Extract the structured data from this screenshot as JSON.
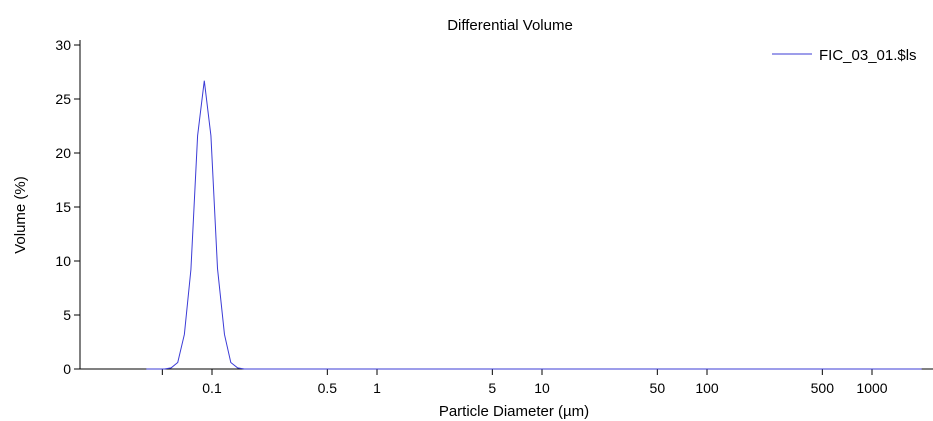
{
  "chart_data": {
    "type": "line",
    "title": "Differential Volume",
    "xlabel": "Particle Diameter (µm)",
    "ylabel": "Volume (%)",
    "x_scale": "log",
    "xlim": [
      0.024,
      2000
    ],
    "ylim": [
      0,
      30
    ],
    "x_ticks": [
      0.1,
      0.5,
      1,
      5,
      10,
      50,
      100,
      500,
      1000
    ],
    "x_tick_labels": [
      "0.1",
      "0.5",
      "1",
      "5",
      "10",
      "50",
      "100",
      "500",
      "1000"
    ],
    "x_minor_ticks": [
      0.05
    ],
    "y_ticks": [
      0,
      5,
      10,
      15,
      20,
      25,
      30
    ],
    "y_tick_labels": [
      "0",
      "5",
      "10",
      "15",
      "20",
      "25",
      "30"
    ],
    "grid": false,
    "legend_position": "top-right",
    "series": [
      {
        "name": "FIC_03_01.$ls",
        "color": "#3b3bd6",
        "x": [
          0.04,
          0.0515,
          0.0565,
          0.062,
          0.068,
          0.0745,
          0.0818,
          0.0898,
          0.0985,
          0.108,
          0.119,
          0.13,
          0.143,
          0.157,
          0.172,
          0.189,
          0.21,
          0.25,
          1,
          10,
          100,
          1000,
          2000
        ],
        "y": [
          0,
          0,
          0.1,
          0.6,
          3.2,
          9.2,
          21.6,
          26.7,
          21.6,
          9.3,
          3.2,
          0.6,
          0.1,
          0,
          0,
          0,
          0,
          0,
          0,
          0,
          0,
          0,
          0
        ]
      }
    ]
  },
  "colors": {
    "series": "#3b3bd6",
    "axis": "#000000",
    "background": "#ffffff"
  }
}
